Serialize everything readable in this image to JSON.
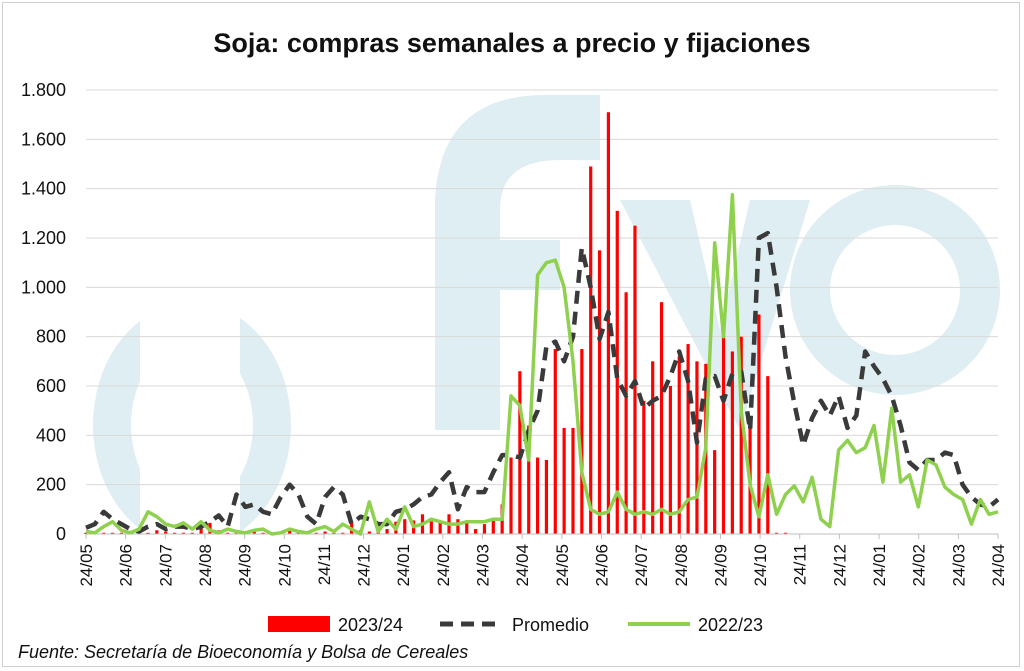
{
  "chart_data": {
    "type": "bar+line",
    "title": "Soja: compras semanales a precio y fijaciones",
    "source": "Fuente: Secretaría de Bioeconomía y Bolsa de Cereales",
    "watermark": "fyo",
    "ylim": [
      0,
      1800
    ],
    "y_ticks": [
      0,
      200,
      400,
      600,
      800,
      1000,
      1200,
      1400,
      1600,
      1800
    ],
    "y_tick_labels": [
      "0",
      "200",
      "400",
      "600",
      "800",
      "1.000",
      "1.200",
      "1.400",
      "1.600",
      "1.800"
    ],
    "x_tick_labels": [
      "24/05",
      "24/06",
      "24/07",
      "24/08",
      "24/09",
      "24/10",
      "24/11",
      "24/12",
      "24/01",
      "24/02",
      "24/03",
      "24/04",
      "24/05",
      "24/06",
      "24/07",
      "24/08",
      "24/09",
      "24/10",
      "24/11",
      "24/12",
      "24/01",
      "24/02",
      "24/03",
      "24/04"
    ],
    "weeks": 104,
    "colors": {
      "bars": "#ff0000",
      "promedio": "#3a3a3a",
      "line2223": "#8fd14f",
      "watermark": "#dfeef3",
      "grid": "#d9d9d9"
    },
    "legend": [
      {
        "name": "2023/24",
        "style": "bar"
      },
      {
        "name": "Promedio",
        "style": "dashed"
      },
      {
        "name": "2022/23",
        "style": "line"
      }
    ],
    "series": [
      {
        "name": "2023/24",
        "type": "bar",
        "values": [
          5,
          10,
          5,
          5,
          5,
          8,
          3,
          5,
          15,
          10,
          5,
          5,
          5,
          25,
          45,
          15,
          5,
          5,
          5,
          10,
          5,
          5,
          10,
          20,
          5,
          5,
          5,
          10,
          5,
          5,
          45,
          15,
          10,
          15,
          20,
          50,
          60,
          55,
          80,
          60,
          45,
          80,
          60,
          55,
          20,
          40,
          60,
          120,
          310,
          660,
          440,
          310,
          300,
          750,
          430,
          430,
          750,
          1490,
          1150,
          1710,
          1310,
          980,
          1250,
          540,
          700,
          940,
          600,
          720,
          770,
          700,
          690,
          340,
          855,
          740,
          800,
          440,
          890,
          640,
          5,
          5,
          0,
          0,
          0,
          0,
          0,
          0,
          0,
          0,
          0,
          0,
          0,
          0,
          0,
          0,
          0,
          0,
          0,
          0,
          0,
          0,
          0,
          0,
          0,
          0
        ]
      },
      {
        "name": "Promedio",
        "type": "line",
        "dash": "dashed",
        "values": [
          25,
          40,
          90,
          60,
          40,
          20,
          10,
          30,
          40,
          20,
          30,
          30,
          20,
          30,
          50,
          75,
          30,
          160,
          110,
          120,
          90,
          80,
          150,
          200,
          160,
          70,
          40,
          150,
          190,
          160,
          40,
          70,
          60,
          40,
          40,
          90,
          100,
          120,
          150,
          160,
          210,
          250,
          100,
          190,
          170,
          170,
          250,
          320,
          320,
          310,
          420,
          500,
          760,
          780,
          700,
          800,
          1160,
          1000,
          790,
          900,
          630,
          560,
          620,
          510,
          540,
          560,
          640,
          740,
          620,
          370,
          630,
          640,
          540,
          650,
          660,
          420,
          1200,
          1220,
          1000,
          720,
          530,
          360,
          470,
          540,
          480,
          560,
          430,
          480,
          740,
          680,
          630,
          560,
          440,
          290,
          260,
          300,
          300,
          330,
          320,
          200,
          150,
          120,
          110,
          140
        ]
      },
      {
        "name": "2022/23",
        "type": "line",
        "dash": "solid",
        "values": [
          10,
          5,
          30,
          50,
          15,
          5,
          20,
          90,
          70,
          40,
          30,
          45,
          20,
          50,
          15,
          5,
          20,
          10,
          5,
          15,
          20,
          0,
          5,
          20,
          10,
          5,
          20,
          30,
          10,
          40,
          20,
          0,
          130,
          10,
          60,
          20,
          110,
          30,
          40,
          60,
          50,
          40,
          40,
          50,
          50,
          50,
          60,
          60,
          560,
          520,
          300,
          1050,
          1100,
          1110,
          1000,
          700,
          250,
          100,
          80,
          90,
          170,
          100,
          80,
          90,
          80,
          100,
          80,
          90,
          140,
          150,
          350,
          1180,
          800,
          1375,
          500,
          200,
          70,
          240,
          80,
          160,
          195,
          130,
          230,
          60,
          30,
          340,
          380,
          330,
          350,
          440,
          210,
          510,
          210,
          240,
          110,
          300,
          280,
          190,
          160,
          140,
          40,
          140,
          80,
          90
        ]
      }
    ]
  }
}
